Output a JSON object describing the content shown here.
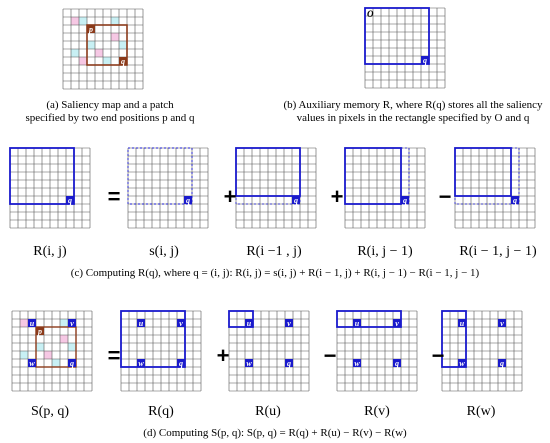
{
  "captions": {
    "a_line1": "(a) Saliency map and a patch",
    "a_line2": "specified by two end positions p and q",
    "b_line1": "(b) Auxiliary memory R, where R(q) stores all the saliency",
    "b_line2": "values in pixels in the rectangle specified by O and q",
    "c": "(c) Computing R(q), where q = (i, j): R(i, j) = s(i, j) + R(i − 1, j) + R(i, j − 1) − R(i − 1, j − 1)",
    "d": "(d) Computing S(p, q): S(p, q) = R(q) + R(u) − R(v) − R(w)"
  },
  "row_c": {
    "labels": [
      "R(i, j)",
      "s(i, j)",
      "R(i −1 , j)",
      "R(i, j − 1)",
      "R(i − 1, j − 1)"
    ],
    "operators": [
      "=",
      "+",
      "+",
      "−"
    ]
  },
  "row_d": {
    "labels": [
      "S(p, q)",
      "R(q)",
      "R(u)",
      "R(v)",
      "R(w)"
    ],
    "operators": [
      "=",
      "+",
      "−",
      "−"
    ]
  },
  "markers": {
    "p": "p",
    "q": "q",
    "u": "u",
    "v": "v",
    "w": "w",
    "O": "O"
  },
  "colors": {
    "blue": "#1a1acc",
    "brown": "#8b3a1a",
    "grid": "#555555",
    "saliency_pink": "#f6c8e4",
    "saliency_cyan": "#c8f0f4"
  }
}
